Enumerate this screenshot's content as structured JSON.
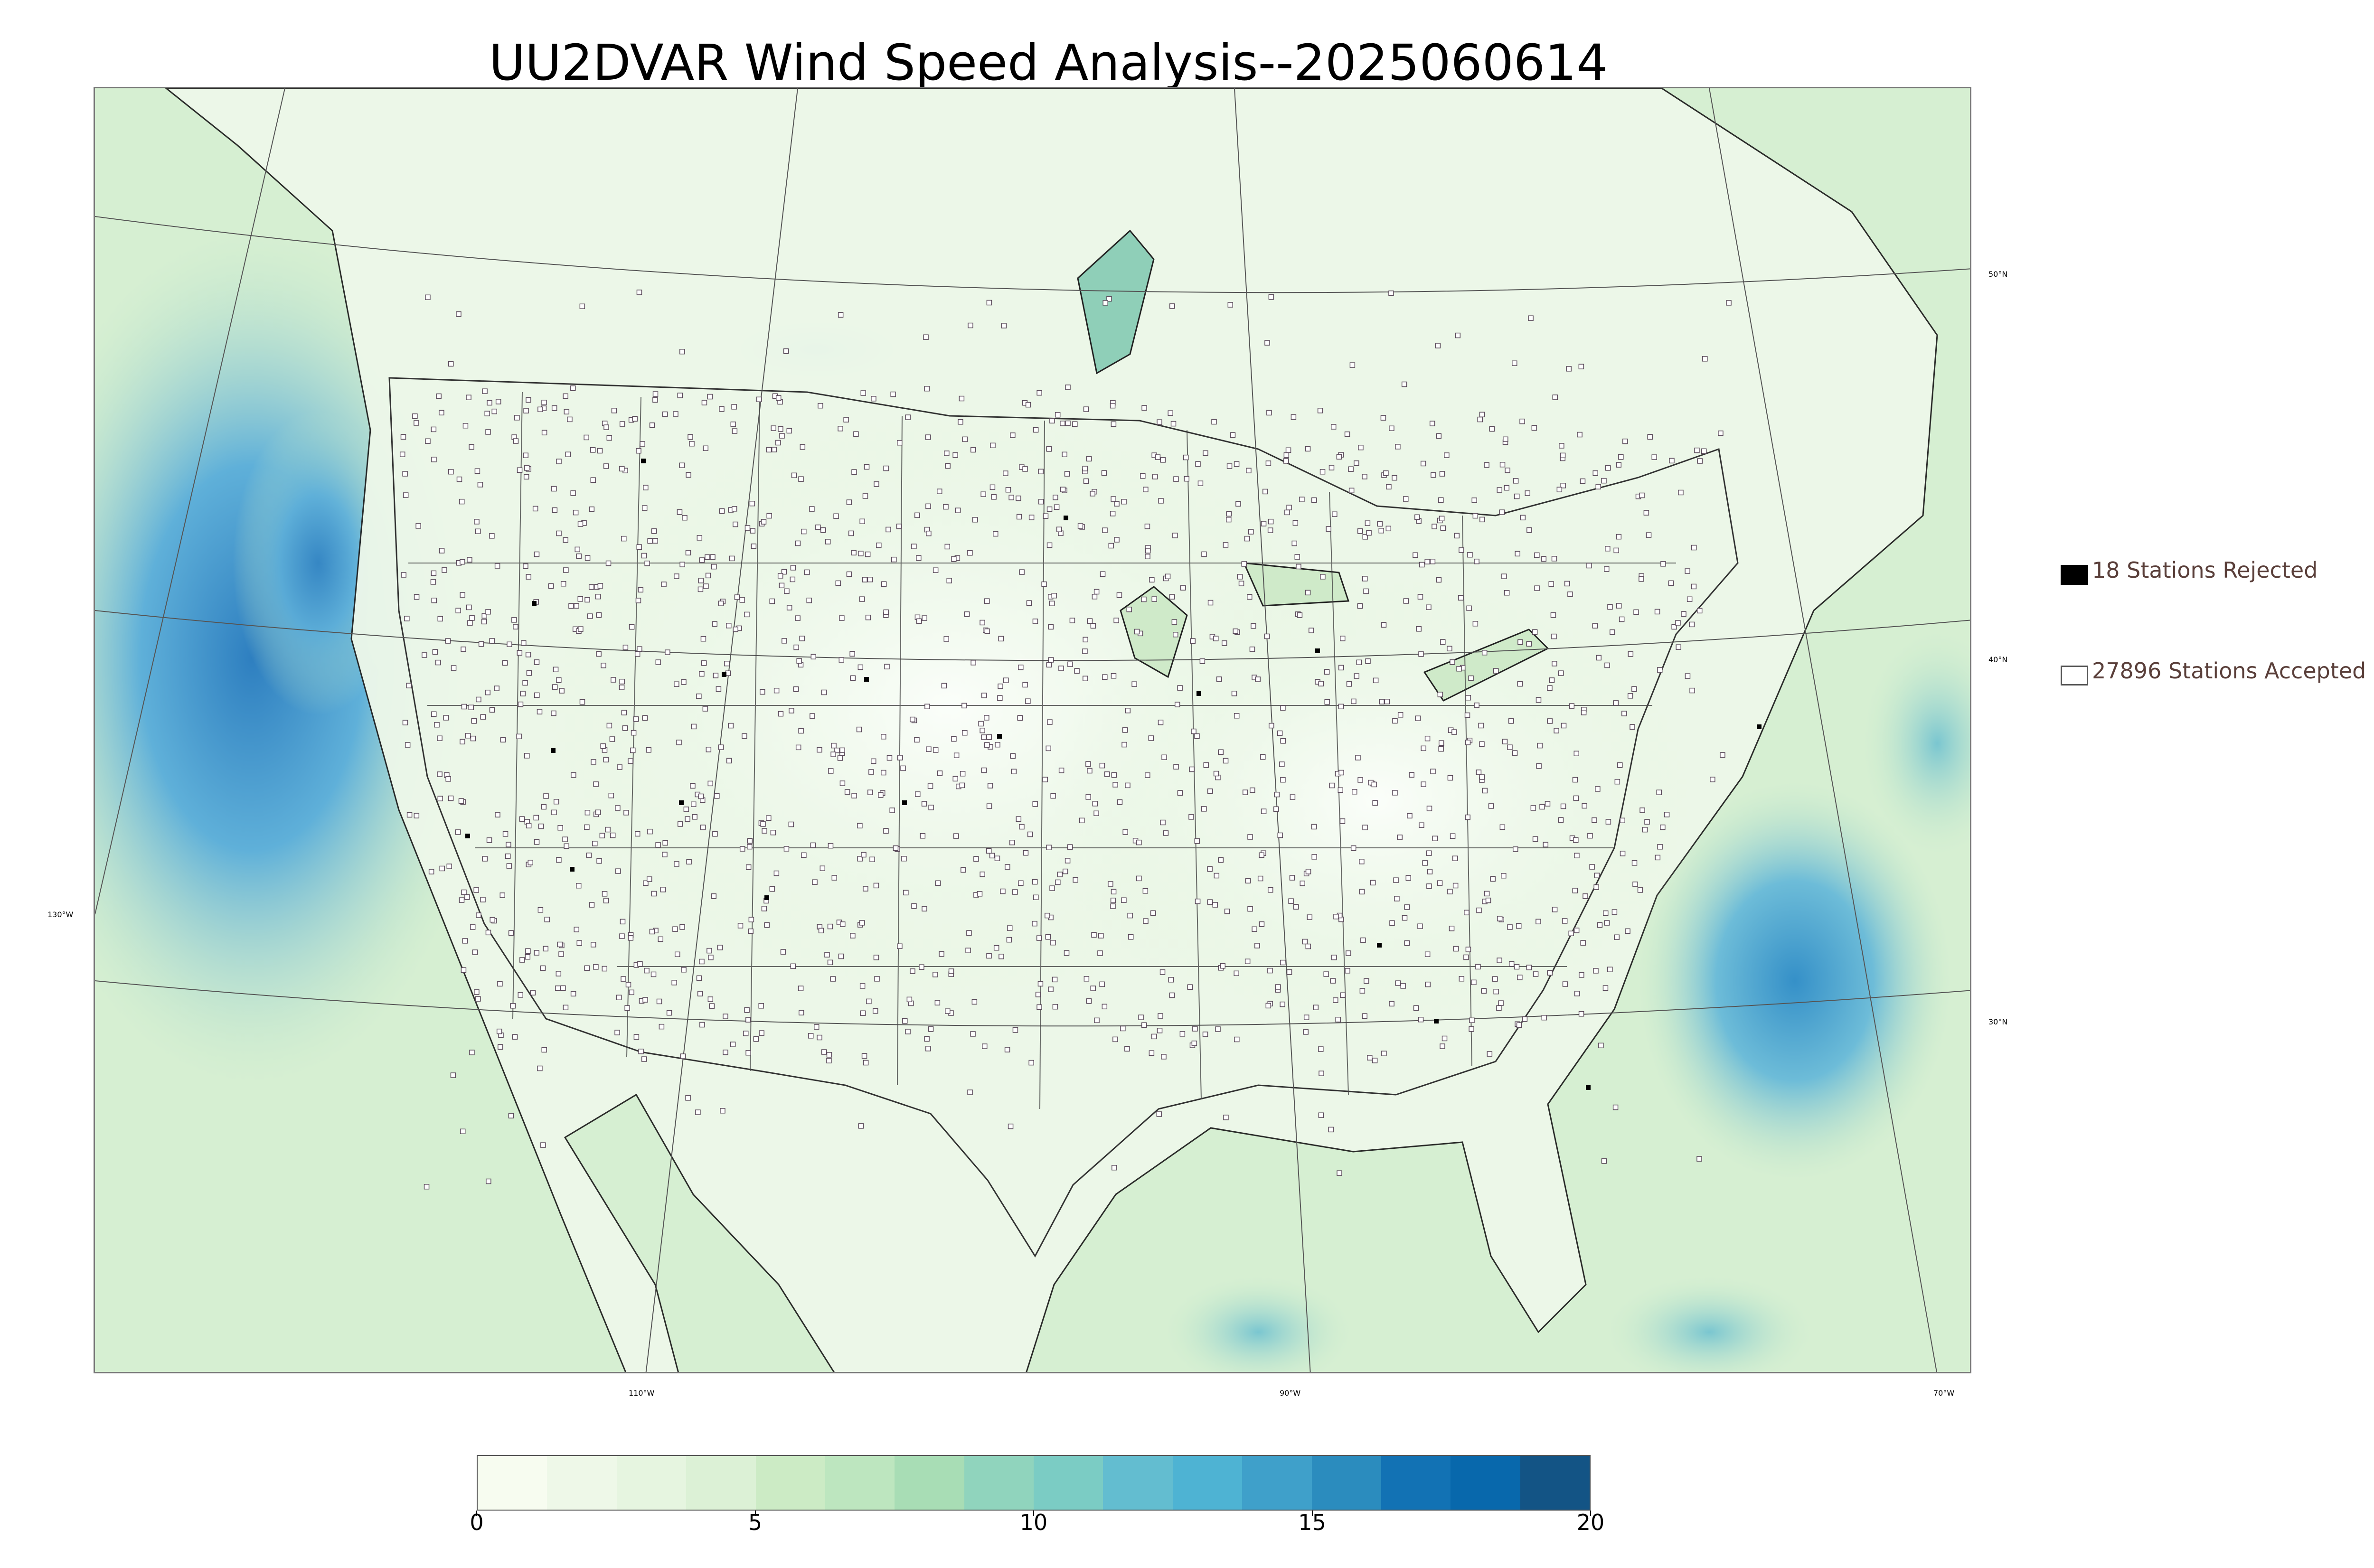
{
  "title": "UU2DVAR Wind Speed Analysis--2025060614",
  "map": {
    "name": "wind-speed-analysis-map",
    "lon_labels": [
      "130°W",
      "110°W",
      "90°W",
      "70°W"
    ],
    "lat_labels": [
      "50°N",
      "40°N",
      "30°N"
    ],
    "colors": {
      "land_light": "#f4fbf1",
      "land_mid": "#dff1d8",
      "ocean_mid": "#bfe5c8",
      "ocean_blue": "#5fb0d9",
      "ocean_deep": "#2e7fc0",
      "lines": "#222222"
    }
  },
  "legend": {
    "rejected_label": "18 Stations Rejected",
    "accepted_label": "27896 Stations Accepted"
  },
  "colorbar": {
    "ticks": [
      "0",
      "5",
      "10",
      "15",
      "20"
    ],
    "min": 0,
    "max": 20,
    "colors": [
      "#f7fcf0",
      "#eef8e8",
      "#e6f5e0",
      "#dcf1d6",
      "#ccebc5",
      "#bde6bf",
      "#a8ddb5",
      "#90d4bd",
      "#7bccc4",
      "#63bdd0",
      "#4eb3d3",
      "#3fa0ca",
      "#2b8cbe",
      "#1272b4",
      "#0868ac",
      "#135485"
    ]
  }
}
